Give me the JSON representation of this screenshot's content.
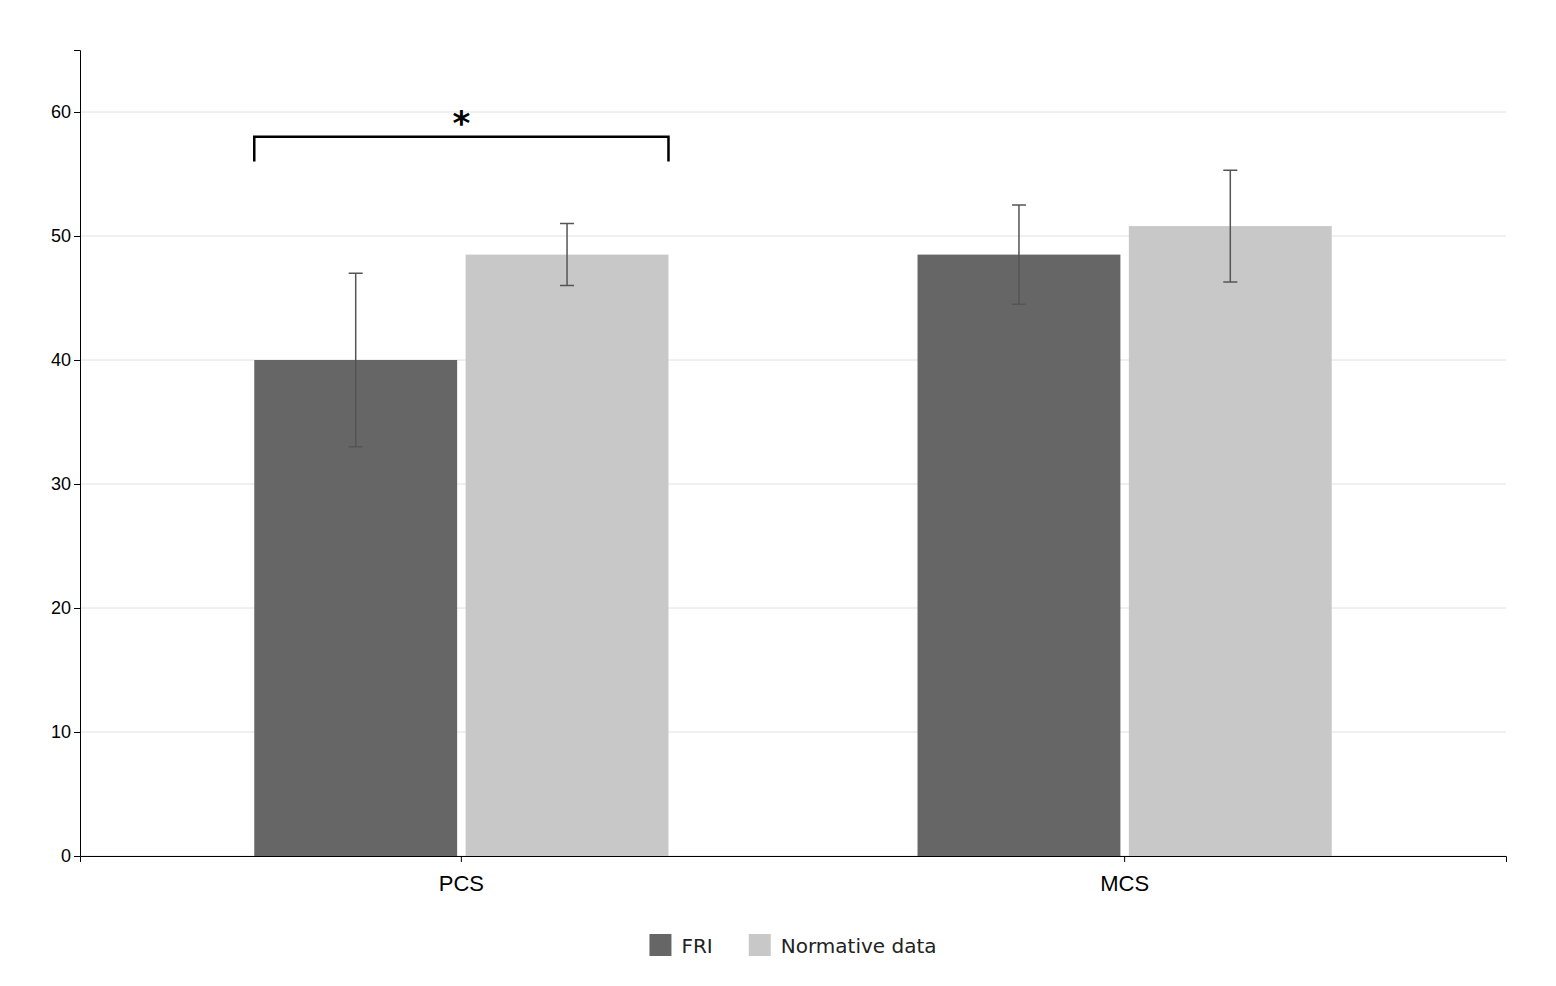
{
  "chart_data": {
    "type": "bar",
    "categories": [
      "PCS",
      "MCS"
    ],
    "series": [
      {
        "name": "FRI",
        "color": "#666666",
        "values": [
          40.0,
          48.5
        ],
        "errors": [
          7.0,
          4.0
        ]
      },
      {
        "name": "Normative data",
        "color": "#c8c8c8",
        "values": [
          48.5,
          50.8
        ],
        "errors": [
          2.5,
          4.5
        ]
      }
    ],
    "ylim": [
      0,
      65
    ],
    "yticks": [
      0,
      10,
      20,
      30,
      40,
      50,
      60
    ],
    "grid": true,
    "legend": "bottom",
    "annotations": [
      {
        "text": "*",
        "category": "PCS",
        "y": 58.0,
        "y_end": 56.0
      }
    ]
  }
}
